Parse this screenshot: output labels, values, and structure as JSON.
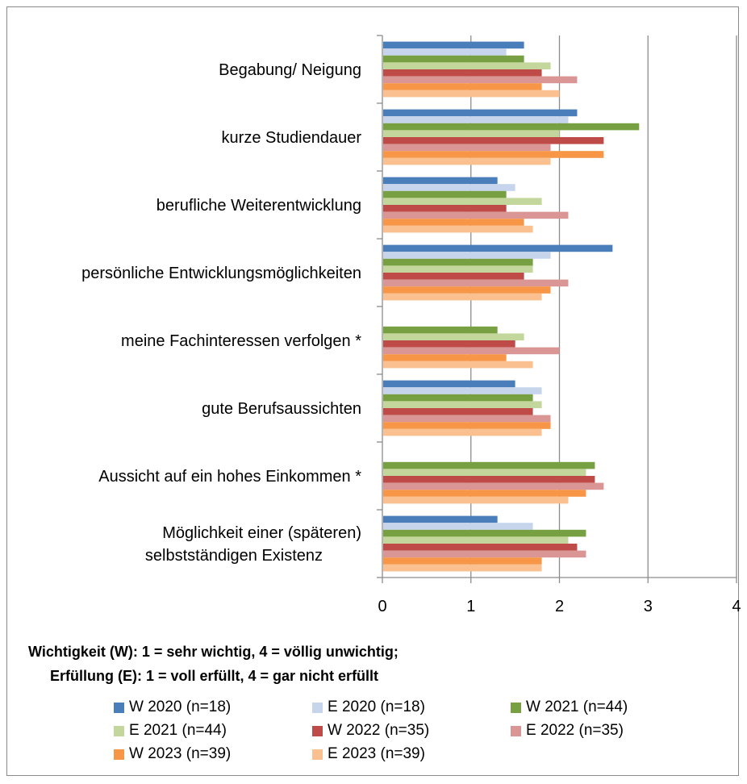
{
  "chart_data": {
    "type": "bar",
    "orientation": "horizontal",
    "categories": [
      "Begabung/ Neigung",
      "kurze Studiendauer",
      "berufliche Weiterentwicklung",
      "persönliche Entwicklungsmöglichkeiten",
      "meine Fachinteressen verfolgen *",
      "gute Berufsaussichten",
      "Aussicht auf ein hohes Einkommen *",
      "Möglichkeit einer (späteren) selbstständigen Existenz"
    ],
    "category_lines": [
      [
        "Begabung/ Neigung"
      ],
      [
        "kurze Studiendauer"
      ],
      [
        "berufliche Weiterentwicklung"
      ],
      [
        "persönliche Entwicklungsmöglichkeiten"
      ],
      [
        "meine Fachinteressen verfolgen *"
      ],
      [
        "gute Berufsaussichten"
      ],
      [
        "Aussicht auf ein hohes Einkommen *"
      ],
      [
        "Möglichkeit einer (späteren)",
        "selbstständigen Existenz"
      ]
    ],
    "series": [
      {
        "name": "W 2020 (n=18)",
        "color": "#4a7ebb",
        "values": [
          1.6,
          2.2,
          1.3,
          2.6,
          null,
          1.5,
          null,
          1.3
        ]
      },
      {
        "name": "E 2020 (n=18)",
        "color": "#c6d5ec",
        "values": [
          1.4,
          2.1,
          1.5,
          1.9,
          null,
          1.8,
          null,
          1.7
        ]
      },
      {
        "name": "W 2021 (n=44)",
        "color": "#77a043",
        "values": [
          1.6,
          2.9,
          1.4,
          1.7,
          1.3,
          1.7,
          2.4,
          2.3
        ]
      },
      {
        "name": "E 2021 (n=44)",
        "color": "#c3d69b",
        "values": [
          1.9,
          2.0,
          1.8,
          1.7,
          1.6,
          1.8,
          2.3,
          2.1
        ]
      },
      {
        "name": "W 2022 (n=35)",
        "color": "#be4b48",
        "values": [
          1.8,
          2.5,
          1.4,
          1.6,
          1.5,
          1.7,
          2.4,
          2.2
        ]
      },
      {
        "name": "E 2022 (n=35)",
        "color": "#d99694",
        "values": [
          2.2,
          1.9,
          2.1,
          2.1,
          2.0,
          1.9,
          2.5,
          2.3
        ]
      },
      {
        "name": "W 2023 (n=39)",
        "color": "#f79646",
        "values": [
          1.8,
          2.5,
          1.6,
          1.9,
          1.4,
          1.9,
          2.3,
          1.8
        ]
      },
      {
        "name": "E 2023 (n=39)",
        "color": "#fac090",
        "values": [
          2.0,
          1.9,
          1.7,
          1.8,
          1.7,
          1.8,
          2.1,
          1.8
        ]
      }
    ],
    "xlim": [
      0,
      4
    ],
    "xticks": [
      "0",
      "1",
      "2",
      "3",
      "4"
    ],
    "grid": true,
    "legend_position": "bottom",
    "note_lines": [
      "Wichtigkeit (W): 1 = sehr wichtig, 4 = völlig unwichtig;",
      "Erfüllung (E): 1 = voll erfüllt, 4 = gar nicht erfüllt"
    ]
  }
}
